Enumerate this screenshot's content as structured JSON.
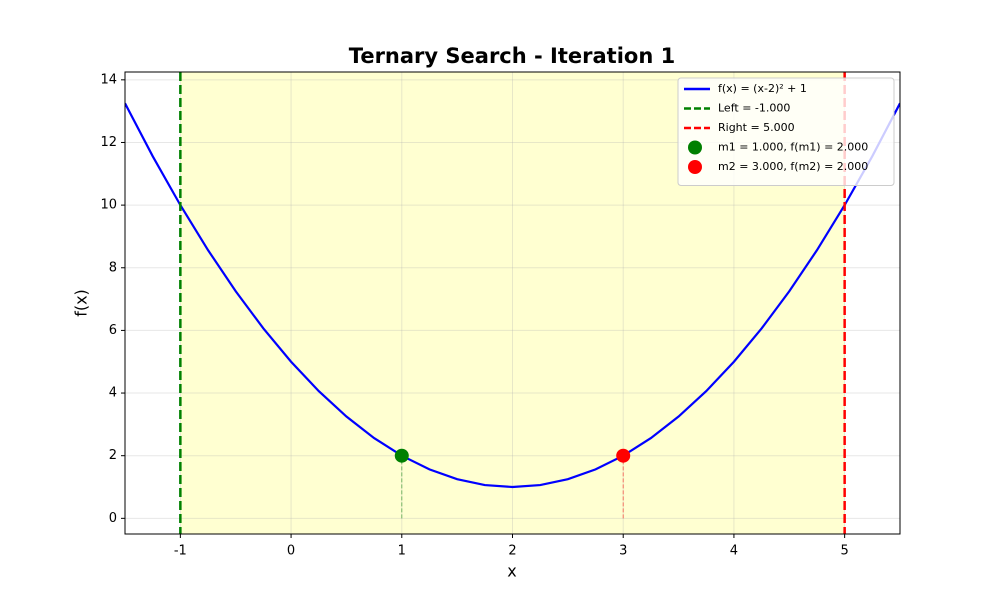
{
  "chart_data": {
    "type": "line",
    "title": "Ternary Search - Iteration 1",
    "xlabel": "x",
    "ylabel": "f(x)",
    "xlim": [
      -1.5,
      5.5
    ],
    "ylim": [
      -0.5,
      14.25
    ],
    "xticks": [
      -1,
      0,
      1,
      2,
      3,
      4,
      5
    ],
    "yticks": [
      0,
      2,
      4,
      6,
      8,
      10,
      12,
      14
    ],
    "grid": true,
    "legend": "upper right",
    "span_color": "#ffffcc",
    "series": [
      {
        "name": "f(x) = (x-2)² + 1",
        "color": "#0000ff",
        "x": [
          -1.5,
          -1.25,
          -1,
          -0.75,
          -0.5,
          -0.25,
          0,
          0.25,
          0.5,
          0.75,
          1,
          1.25,
          1.5,
          1.75,
          2,
          2.25,
          2.5,
          2.75,
          3,
          3.25,
          3.5,
          3.75,
          4,
          4.25,
          4.5,
          4.75,
          5,
          5.25,
          5.5
        ],
        "values": [
          13.25,
          11.5625,
          10,
          8.5625,
          7.25,
          6.0625,
          5,
          4.0625,
          3.25,
          2.5625,
          2,
          1.5625,
          1.25,
          1.0625,
          1,
          1.0625,
          1.25,
          1.5625,
          2,
          2.5625,
          3.25,
          4.0625,
          5,
          6.0625,
          7.25,
          8.5625,
          10,
          11.5625,
          13.25
        ]
      }
    ],
    "vlines": [
      {
        "name": "Left = -1.000",
        "color": "#008000",
        "x": -1
      },
      {
        "name": "Right = 5.000",
        "color": "#ff0000",
        "x": 5
      }
    ],
    "points": [
      {
        "name": "m1 = 1.000, f(m1) = 2.000",
        "color": "#008000",
        "x": 1,
        "y": 2
      },
      {
        "name": "m2 = 3.000, f(m2) = 2.000",
        "color": "#ff0000",
        "x": 3,
        "y": 2
      }
    ]
  }
}
